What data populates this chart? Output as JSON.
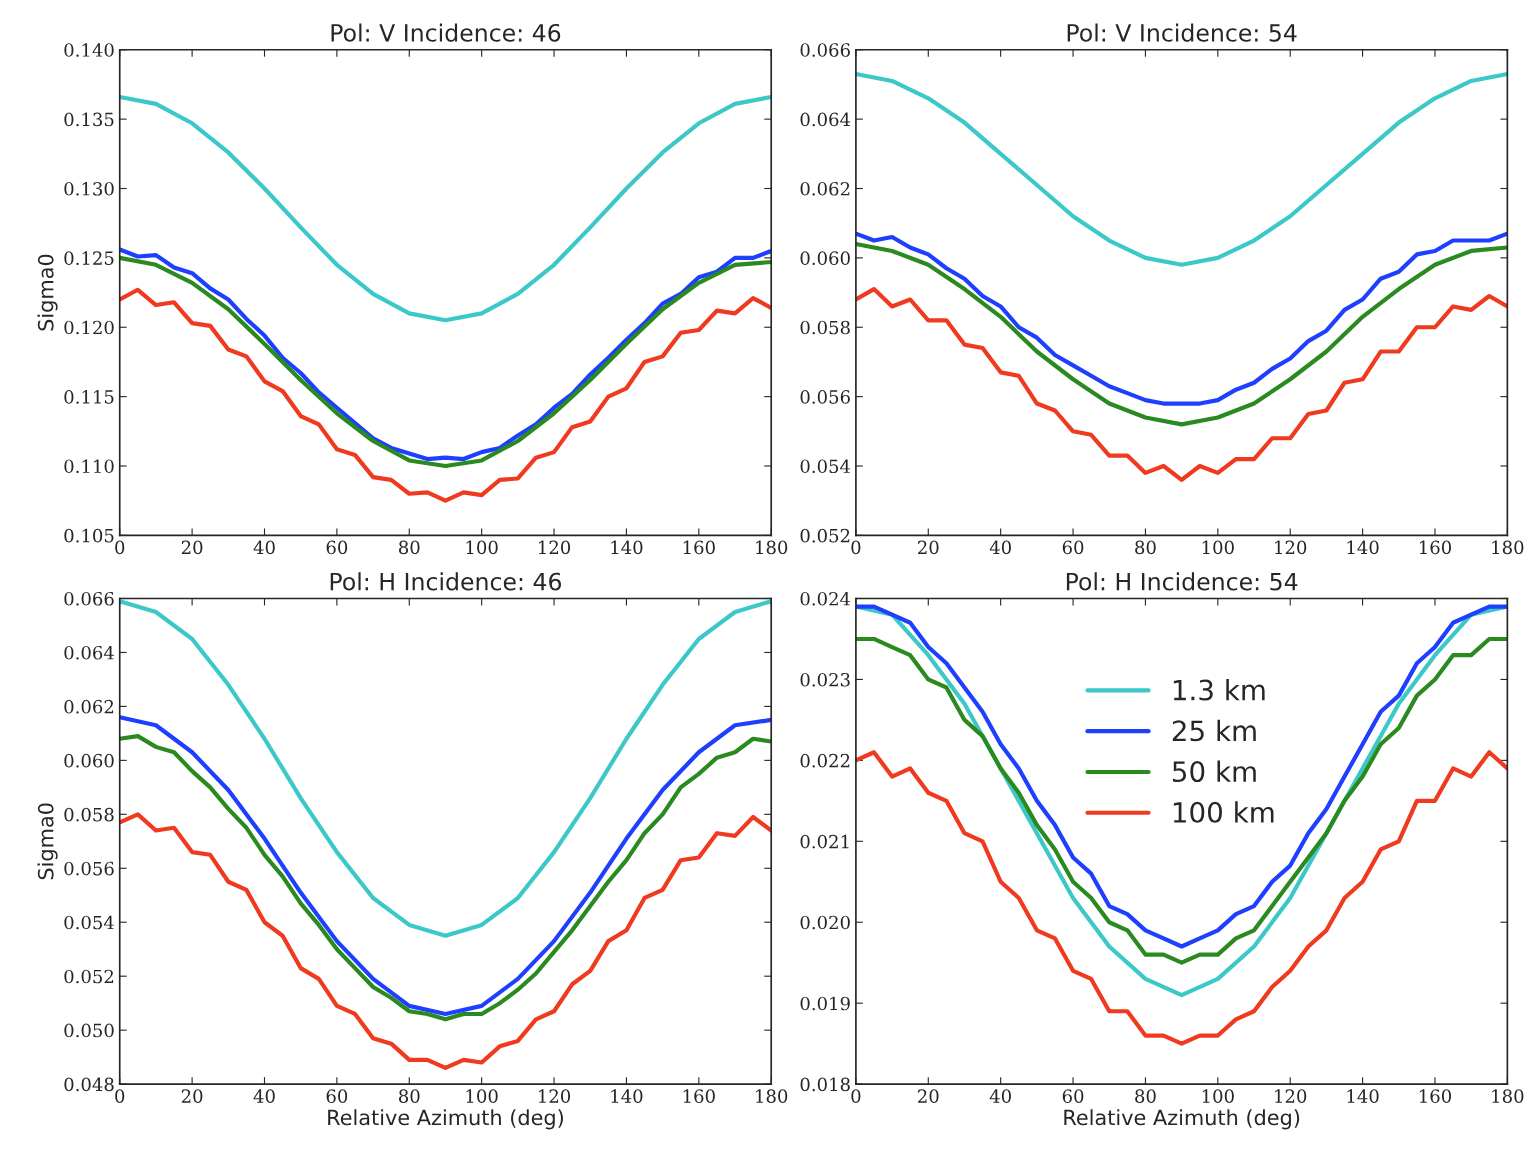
{
  "chart_data": [
    {
      "type": "line",
      "title": "Pol: V Incidence: 46",
      "ylabel": "Sigma0",
      "x": [
        0,
        5,
        10,
        15,
        20,
        25,
        30,
        35,
        40,
        45,
        50,
        55,
        60,
        65,
        70,
        75,
        80,
        85,
        90,
        95,
        100,
        105,
        110,
        115,
        120,
        125,
        130,
        135,
        140,
        145,
        150,
        155,
        160,
        165,
        170,
        175,
        180
      ],
      "xlim": [
        0,
        180
      ],
      "xticks": [
        0,
        20,
        40,
        60,
        80,
        100,
        120,
        140,
        160,
        180
      ],
      "ylim": [
        0.105,
        0.14
      ],
      "yticks": [
        {
          "value": 0.105,
          "label": "0.105"
        },
        {
          "value": 0.11,
          "label": "0.110"
        },
        {
          "value": 0.115,
          "label": "0.115"
        },
        {
          "value": 0.12,
          "label": "0.120"
        },
        {
          "value": 0.125,
          "label": "0.125"
        },
        {
          "value": 0.13,
          "label": "0.130"
        },
        {
          "value": 0.135,
          "label": "0.135"
        },
        {
          "value": 0.14,
          "label": "0.140"
        }
      ],
      "grid": false,
      "legend": false,
      "series": [
        {
          "color": "#3cc8c8",
          "x": [
            0,
            10,
            20,
            30,
            40,
            50,
            60,
            70,
            80,
            90,
            100,
            110,
            120,
            130,
            140,
            150,
            160,
            170,
            180
          ],
          "values": [
            0.1366,
            0.1361,
            0.1347,
            0.1326,
            0.13,
            0.1272,
            0.1245,
            0.1224,
            0.121,
            0.1205,
            0.121,
            0.1224,
            0.1245,
            0.1272,
            0.13,
            0.1326,
            0.1347,
            0.1361,
            0.1366
          ]
        },
        {
          "color": "#1f3fff",
          "values": [
            0.1256,
            0.1251,
            0.1252,
            0.1243,
            0.1239,
            0.1228,
            0.122,
            0.1206,
            0.1194,
            0.1178,
            0.1167,
            0.1153,
            0.1142,
            0.1131,
            0.112,
            0.1113,
            0.1109,
            0.1105,
            0.1106,
            0.1105,
            0.111,
            0.1113,
            0.1122,
            0.113,
            0.1142,
            0.1152,
            0.1166,
            0.1178,
            0.1191,
            0.1203,
            0.1217,
            0.1224,
            0.1236,
            0.124,
            0.125,
            0.125,
            0.1255
          ]
        },
        {
          "color": "#2a8a1f",
          "x": [
            0,
            10,
            20,
            30,
            40,
            50,
            60,
            70,
            80,
            90,
            100,
            110,
            120,
            130,
            140,
            150,
            160,
            170,
            180
          ],
          "values": [
            0.125,
            0.1245,
            0.1232,
            0.1213,
            0.1188,
            0.1162,
            0.1138,
            0.1118,
            0.1104,
            0.11,
            0.1104,
            0.1118,
            0.1138,
            0.1162,
            0.1188,
            0.1213,
            0.1232,
            0.1245,
            0.1247
          ]
        },
        {
          "color": "#f03a20",
          "values": [
            0.122,
            0.1227,
            0.1216,
            0.1218,
            0.1203,
            0.1201,
            0.1184,
            0.1179,
            0.1161,
            0.1154,
            0.1136,
            0.113,
            0.1112,
            0.1108,
            0.1092,
            0.109,
            0.108,
            0.1081,
            0.1075,
            0.1081,
            0.1079,
            0.109,
            0.1091,
            0.1106,
            0.111,
            0.1128,
            0.1132,
            0.115,
            0.1156,
            0.1175,
            0.1179,
            0.1196,
            0.1198,
            0.1212,
            0.121,
            0.1221,
            0.1214
          ]
        }
      ]
    },
    {
      "type": "line",
      "title": "Pol: V Incidence: 54",
      "x": [
        0,
        5,
        10,
        15,
        20,
        25,
        30,
        35,
        40,
        45,
        50,
        55,
        60,
        65,
        70,
        75,
        80,
        85,
        90,
        95,
        100,
        105,
        110,
        115,
        120,
        125,
        130,
        135,
        140,
        145,
        150,
        155,
        160,
        165,
        170,
        175,
        180
      ],
      "xlim": [
        0,
        180
      ],
      "xticks": [
        0,
        20,
        40,
        60,
        80,
        100,
        120,
        140,
        160,
        180
      ],
      "ylim": [
        0.052,
        0.066
      ],
      "yticks": [
        {
          "value": 0.052,
          "label": "0.052"
        },
        {
          "value": 0.054,
          "label": "0.054"
        },
        {
          "value": 0.056,
          "label": "0.056"
        },
        {
          "value": 0.058,
          "label": "0.058"
        },
        {
          "value": 0.06,
          "label": "0.060"
        },
        {
          "value": 0.062,
          "label": "0.062"
        },
        {
          "value": 0.064,
          "label": "0.064"
        },
        {
          "value": 0.066,
          "label": "0.066"
        }
      ],
      "grid": false,
      "legend": false,
      "series": [
        {
          "color": "#3cc8c8",
          "x": [
            0,
            10,
            20,
            30,
            40,
            50,
            60,
            70,
            80,
            90,
            100,
            110,
            120,
            130,
            140,
            150,
            160,
            170,
            180
          ],
          "values": [
            0.0653,
            0.0651,
            0.0646,
            0.0639,
            0.063,
            0.0621,
            0.0612,
            0.0605,
            0.06,
            0.0598,
            0.06,
            0.0605,
            0.0612,
            0.0621,
            0.063,
            0.0639,
            0.0646,
            0.0651,
            0.0653
          ]
        },
        {
          "color": "#1f3fff",
          "values": [
            0.0607,
            0.0605,
            0.0606,
            0.0603,
            0.0601,
            0.0597,
            0.0594,
            0.0589,
            0.0586,
            0.058,
            0.0577,
            0.0572,
            0.0569,
            0.0566,
            0.0563,
            0.0561,
            0.0559,
            0.0558,
            0.0558,
            0.0558,
            0.0559,
            0.0562,
            0.0564,
            0.0568,
            0.0571,
            0.0576,
            0.0579,
            0.0585,
            0.0588,
            0.0594,
            0.0596,
            0.0601,
            0.0602,
            0.0605,
            0.0605,
            0.0605,
            0.0607
          ]
        },
        {
          "color": "#2a8a1f",
          "x": [
            0,
            10,
            20,
            30,
            40,
            50,
            60,
            70,
            80,
            90,
            100,
            110,
            120,
            130,
            140,
            150,
            160,
            170,
            180
          ],
          "values": [
            0.0604,
            0.0602,
            0.0598,
            0.0591,
            0.0583,
            0.0573,
            0.0565,
            0.0558,
            0.0554,
            0.0552,
            0.0554,
            0.0558,
            0.0565,
            0.0573,
            0.0583,
            0.0591,
            0.0598,
            0.0602,
            0.0603
          ]
        },
        {
          "color": "#f03a20",
          "values": [
            0.0588,
            0.0591,
            0.0586,
            0.0588,
            0.0582,
            0.0582,
            0.0575,
            0.0574,
            0.0567,
            0.0566,
            0.0558,
            0.0556,
            0.055,
            0.0549,
            0.0543,
            0.0543,
            0.0538,
            0.054,
            0.0536,
            0.054,
            0.0538,
            0.0542,
            0.0542,
            0.0548,
            0.0548,
            0.0555,
            0.0556,
            0.0564,
            0.0565,
            0.0573,
            0.0573,
            0.058,
            0.058,
            0.0586,
            0.0585,
            0.0589,
            0.0586
          ]
        }
      ]
    },
    {
      "type": "line",
      "title": "Pol: H Incidence: 46",
      "ylabel": "Sigma0",
      "xlabel": "Relative Azimuth (deg)",
      "x": [
        0,
        5,
        10,
        15,
        20,
        25,
        30,
        35,
        40,
        45,
        50,
        55,
        60,
        65,
        70,
        75,
        80,
        85,
        90,
        95,
        100,
        105,
        110,
        115,
        120,
        125,
        130,
        135,
        140,
        145,
        150,
        155,
        160,
        165,
        170,
        175,
        180
      ],
      "xlim": [
        0,
        180
      ],
      "xticks": [
        0,
        20,
        40,
        60,
        80,
        100,
        120,
        140,
        160,
        180
      ],
      "ylim": [
        0.048,
        0.066
      ],
      "yticks": [
        {
          "value": 0.048,
          "label": "0.048"
        },
        {
          "value": 0.05,
          "label": "0.050"
        },
        {
          "value": 0.052,
          "label": "0.052"
        },
        {
          "value": 0.054,
          "label": "0.054"
        },
        {
          "value": 0.056,
          "label": "0.056"
        },
        {
          "value": 0.058,
          "label": "0.058"
        },
        {
          "value": 0.06,
          "label": "0.060"
        },
        {
          "value": 0.062,
          "label": "0.062"
        },
        {
          "value": 0.064,
          "label": "0.064"
        },
        {
          "value": 0.066,
          "label": "0.066"
        }
      ],
      "grid": false,
      "legend": false,
      "series": [
        {
          "color": "#3cc8c8",
          "x": [
            0,
            10,
            20,
            30,
            40,
            50,
            60,
            70,
            80,
            90,
            100,
            110,
            120,
            130,
            140,
            150,
            160,
            170,
            180
          ],
          "values": [
            0.0659,
            0.0655,
            0.0645,
            0.0628,
            0.0608,
            0.0586,
            0.0566,
            0.0549,
            0.0539,
            0.0535,
            0.0539,
            0.0549,
            0.0566,
            0.0586,
            0.0608,
            0.0628,
            0.0645,
            0.0655,
            0.0659
          ]
        },
        {
          "color": "#1f3fff",
          "x": [
            0,
            10,
            20,
            30,
            40,
            50,
            60,
            70,
            80,
            90,
            100,
            110,
            120,
            130,
            140,
            150,
            160,
            170,
            180
          ],
          "values": [
            0.0616,
            0.0613,
            0.0603,
            0.0589,
            0.0571,
            0.0551,
            0.0533,
            0.0519,
            0.0509,
            0.0506,
            0.0509,
            0.0519,
            0.0533,
            0.0551,
            0.0571,
            0.0589,
            0.0603,
            0.0613,
            0.0615
          ]
        },
        {
          "color": "#2a8a1f",
          "values": [
            0.0608,
            0.0609,
            0.0605,
            0.0603,
            0.0596,
            0.059,
            0.0582,
            0.0575,
            0.0565,
            0.0557,
            0.0547,
            0.0539,
            0.053,
            0.0523,
            0.0516,
            0.0512,
            0.0507,
            0.0506,
            0.0504,
            0.0506,
            0.0506,
            0.051,
            0.0515,
            0.0521,
            0.0529,
            0.0537,
            0.0546,
            0.0555,
            0.0563,
            0.0573,
            0.058,
            0.059,
            0.0595,
            0.0601,
            0.0603,
            0.0608,
            0.0607
          ]
        },
        {
          "color": "#f03a20",
          "values": [
            0.0577,
            0.058,
            0.0574,
            0.0575,
            0.0566,
            0.0565,
            0.0555,
            0.0552,
            0.054,
            0.0535,
            0.0523,
            0.0519,
            0.0509,
            0.0506,
            0.0497,
            0.0495,
            0.0489,
            0.0489,
            0.0486,
            0.0489,
            0.0488,
            0.0494,
            0.0496,
            0.0504,
            0.0507,
            0.0517,
            0.0522,
            0.0533,
            0.0537,
            0.0549,
            0.0552,
            0.0563,
            0.0564,
            0.0573,
            0.0572,
            0.0579,
            0.0574
          ]
        }
      ]
    },
    {
      "type": "line",
      "title": "Pol: H Incidence: 54",
      "xlabel": "Relative Azimuth (deg)",
      "x": [
        0,
        5,
        10,
        15,
        20,
        25,
        30,
        35,
        40,
        45,
        50,
        55,
        60,
        65,
        70,
        75,
        80,
        85,
        90,
        95,
        100,
        105,
        110,
        115,
        120,
        125,
        130,
        135,
        140,
        145,
        150,
        155,
        160,
        165,
        170,
        175,
        180
      ],
      "xlim": [
        0,
        180
      ],
      "xticks": [
        0,
        20,
        40,
        60,
        80,
        100,
        120,
        140,
        160,
        180
      ],
      "ylim": [
        0.018,
        0.024
      ],
      "yticks": [
        {
          "value": 0.018,
          "label": "0.018"
        },
        {
          "value": 0.019,
          "label": "0.019"
        },
        {
          "value": 0.02,
          "label": "0.020"
        },
        {
          "value": 0.021,
          "label": "0.021"
        },
        {
          "value": 0.022,
          "label": "0.022"
        },
        {
          "value": 0.023,
          "label": "0.023"
        },
        {
          "value": 0.024,
          "label": "0.024"
        }
      ],
      "grid": false,
      "legend": "top",
      "series": [
        {
          "name": "1.3 km",
          "color": "#3cc8c8",
          "x": [
            0,
            10,
            20,
            30,
            40,
            50,
            60,
            70,
            80,
            90,
            100,
            110,
            120,
            130,
            140,
            150,
            160,
            170,
            180
          ],
          "values": [
            0.0239,
            0.0238,
            0.0233,
            0.0227,
            0.0219,
            0.0211,
            0.0203,
            0.0197,
            0.0193,
            0.0191,
            0.0193,
            0.0197,
            0.0203,
            0.0211,
            0.0219,
            0.0227,
            0.0233,
            0.0238,
            0.0239
          ]
        },
        {
          "name": "25 km",
          "color": "#1f3fff",
          "values": [
            0.0239,
            0.0239,
            0.0238,
            0.0237,
            0.0234,
            0.0232,
            0.0229,
            0.0226,
            0.0222,
            0.0219,
            0.0215,
            0.0212,
            0.0208,
            0.0206,
            0.0202,
            0.0201,
            0.0199,
            0.0198,
            0.0197,
            0.0198,
            0.0199,
            0.0201,
            0.0202,
            0.0205,
            0.0207,
            0.0211,
            0.0214,
            0.0218,
            0.0222,
            0.0226,
            0.0228,
            0.0232,
            0.0234,
            0.0237,
            0.0238,
            0.0239,
            0.0239
          ]
        },
        {
          "name": "50 km",
          "color": "#2a8a1f",
          "values": [
            0.0235,
            0.0235,
            0.0234,
            0.0233,
            0.023,
            0.0229,
            0.0225,
            0.0223,
            0.0219,
            0.0216,
            0.0212,
            0.0209,
            0.0205,
            0.0203,
            0.02,
            0.0199,
            0.0196,
            0.0196,
            0.0195,
            0.0196,
            0.0196,
            0.0198,
            0.0199,
            0.0202,
            0.0205,
            0.0208,
            0.0211,
            0.0215,
            0.0218,
            0.0222,
            0.0224,
            0.0228,
            0.023,
            0.0233,
            0.0233,
            0.0235,
            0.0235
          ]
        },
        {
          "name": "100 km",
          "color": "#f03a20",
          "values": [
            0.022,
            0.0221,
            0.0218,
            0.0219,
            0.0216,
            0.0215,
            0.0211,
            0.021,
            0.0205,
            0.0203,
            0.0199,
            0.0198,
            0.0194,
            0.0193,
            0.0189,
            0.0189,
            0.0186,
            0.0186,
            0.0185,
            0.0186,
            0.0186,
            0.0188,
            0.0189,
            0.0192,
            0.0194,
            0.0197,
            0.0199,
            0.0203,
            0.0205,
            0.0209,
            0.021,
            0.0215,
            0.0215,
            0.0219,
            0.0218,
            0.0221,
            0.0219
          ]
        }
      ]
    }
  ]
}
